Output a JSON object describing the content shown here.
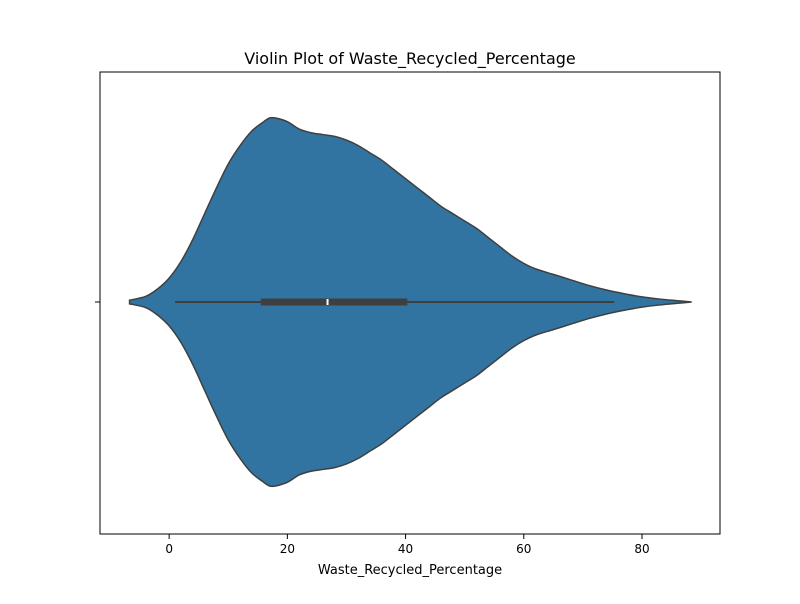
{
  "chart_data": {
    "type": "violin",
    "title": "Violin Plot of Waste_Recycled_Percentage",
    "xlabel": "Waste_Recycled_Percentage",
    "ylabel": "",
    "xlim": [
      -11.7,
      93.2
    ],
    "x_ticks": [
      0,
      20,
      40,
      60,
      80
    ],
    "x_tick_labels": [
      "0",
      "20",
      "40",
      "60",
      "80"
    ],
    "grid": false,
    "legend": "none",
    "density": {
      "x": [
        -6.7,
        -4,
        -2,
        0,
        2,
        4,
        6,
        8,
        10,
        12,
        14,
        16,
        17,
        18,
        20,
        22,
        24,
        26,
        28,
        30,
        32,
        34,
        36,
        38,
        40,
        42,
        44,
        46,
        48,
        50,
        52,
        54,
        56,
        58,
        60,
        62,
        65,
        68,
        71,
        74,
        77,
        80,
        83,
        86,
        88.4
      ],
      "relative_width": [
        0.01,
        0.03,
        0.07,
        0.13,
        0.22,
        0.34,
        0.48,
        0.62,
        0.75,
        0.85,
        0.93,
        0.98,
        1.0,
        1.0,
        0.98,
        0.94,
        0.92,
        0.91,
        0.9,
        0.88,
        0.85,
        0.81,
        0.77,
        0.72,
        0.67,
        0.62,
        0.57,
        0.52,
        0.48,
        0.44,
        0.4,
        0.35,
        0.3,
        0.25,
        0.21,
        0.18,
        0.15,
        0.12,
        0.09,
        0.065,
        0.045,
        0.028,
        0.016,
        0.007,
        0.0
      ]
    },
    "box": {
      "whisker_low": 1,
      "q1": 15.5,
      "median": 26.8,
      "q3": 40.3,
      "whisker_high": 75.3
    },
    "colors": {
      "violin_fill": "#3274a1",
      "violin_edge": "#3f3f3f",
      "box": "#3f3f3f",
      "median": "#ffffff"
    }
  }
}
